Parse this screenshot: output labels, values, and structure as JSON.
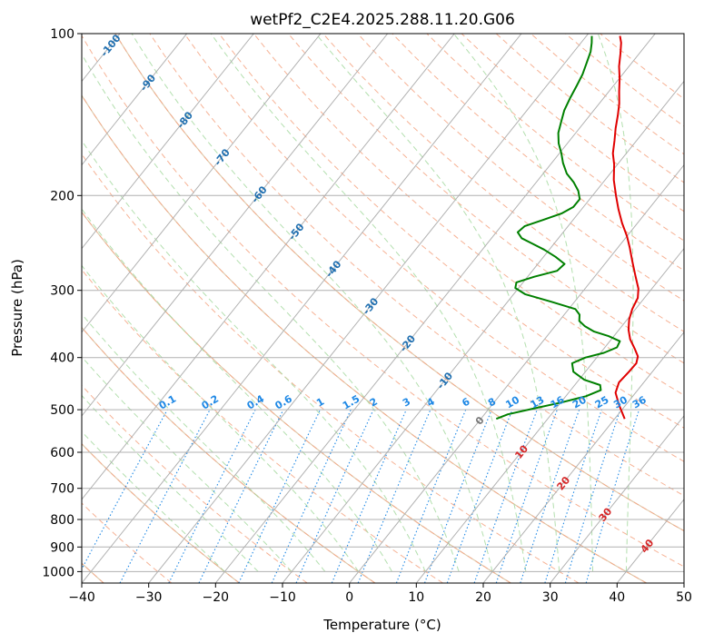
{
  "chart_data": {
    "type": "line",
    "chart_kind": "skew-T log-P",
    "title": "wetPf2_C2E4.2025.288.11.20.G06",
    "xlabel": "Temperature (°C)",
    "ylabel": "Pressure (hPa)",
    "xlim": [
      -40,
      50
    ],
    "ylim": [
      1050,
      100
    ],
    "x_ticks": [
      -40,
      -30,
      -20,
      -10,
      0,
      10,
      20,
      30,
      40,
      50
    ],
    "y_ticks": [
      100,
      200,
      300,
      400,
      500,
      600,
      700,
      800,
      900,
      1000
    ],
    "series": [
      {
        "name": "temperature",
        "color": "#e00000",
        "points": [
          [
            21.5,
            520
          ],
          [
            19,
            490
          ],
          [
            17,
            465
          ],
          [
            16.3,
            445
          ],
          [
            16.5,
            425
          ],
          [
            16.6,
            410
          ],
          [
            16,
            398
          ],
          [
            14.6,
            385
          ],
          [
            12.8,
            370
          ],
          [
            11.4,
            355
          ],
          [
            10.3,
            340
          ],
          [
            9.5,
            325
          ],
          [
            9,
            310
          ],
          [
            8,
            298
          ],
          [
            6,
            282
          ],
          [
            3.8,
            265
          ],
          [
            1.8,
            250
          ],
          [
            0,
            238
          ],
          [
            -2.3,
            225
          ],
          [
            -4.5,
            212
          ],
          [
            -6.5,
            200
          ],
          [
            -8.7,
            187
          ],
          [
            -10.5,
            175
          ],
          [
            -12,
            167
          ],
          [
            -13.3,
            158
          ],
          [
            -14.6,
            150
          ],
          [
            -15.8,
            142
          ],
          [
            -17,
            135
          ],
          [
            -18.5,
            128
          ],
          [
            -20,
            121
          ],
          [
            -21.5,
            115
          ],
          [
            -22.8,
            109
          ],
          [
            -24,
            104
          ],
          [
            -25,
            101
          ]
        ]
      },
      {
        "name": "dewpoint",
        "color": "#008000",
        "points": [
          [
            2.3,
            520
          ],
          [
            3.5,
            510
          ],
          [
            6.5,
            498
          ],
          [
            10,
            485
          ],
          [
            13,
            472
          ],
          [
            14.5,
            460
          ],
          [
            13.8,
            450
          ],
          [
            10.8,
            440
          ],
          [
            8.2,
            425
          ],
          [
            7,
            410
          ],
          [
            8.3,
            400
          ],
          [
            10.5,
            392
          ],
          [
            11.8,
            383
          ],
          [
            11.5,
            373
          ],
          [
            9.2,
            365
          ],
          [
            6.5,
            358
          ],
          [
            4.5,
            350
          ],
          [
            3,
            342
          ],
          [
            2.3,
            333
          ],
          [
            1,
            325
          ],
          [
            -3.5,
            315
          ],
          [
            -8.3,
            305
          ],
          [
            -10.5,
            297
          ],
          [
            -11,
            290
          ],
          [
            -9,
            283
          ],
          [
            -6.3,
            276
          ],
          [
            -6,
            268
          ],
          [
            -8.2,
            260
          ],
          [
            -10.8,
            252
          ],
          [
            -13.5,
            245
          ],
          [
            -15.5,
            240
          ],
          [
            -16.8,
            234
          ],
          [
            -16.5,
            228
          ],
          [
            -14.5,
            222
          ],
          [
            -12.5,
            216
          ],
          [
            -11.5,
            210
          ],
          [
            -11.5,
            203
          ],
          [
            -12.7,
            196
          ],
          [
            -14.4,
            189
          ],
          [
            -16.5,
            182
          ],
          [
            -18.3,
            174
          ],
          [
            -19.7,
            167
          ],
          [
            -21.3,
            160
          ],
          [
            -22.6,
            153
          ],
          [
            -23.5,
            146
          ],
          [
            -24.4,
            139
          ],
          [
            -25,
            132
          ],
          [
            -25.5,
            125
          ],
          [
            -26,
            119
          ],
          [
            -26.8,
            113
          ],
          [
            -27.5,
            108
          ],
          [
            -28.4,
            104
          ],
          [
            -29.2,
            101
          ]
        ]
      }
    ],
    "isotherm_labels": [
      "-100",
      "-90",
      "-80",
      "-70",
      "-60",
      "-50",
      "-40",
      "-30",
      "-20",
      "-10",
      "0",
      "10",
      "20",
      "30",
      "40"
    ],
    "mixing_ratio_labels": [
      "0.1",
      "0.2",
      "0.4",
      "0.6",
      "1",
      "1.5",
      "2",
      "3",
      "4",
      "6",
      "8",
      "10",
      "13",
      "16",
      "20",
      "25",
      "30",
      "36"
    ],
    "colors": {
      "isotherm_label_cold": "#1f6fb0",
      "isotherm_label_zero": "#777777",
      "isotherm_label_warm": "#d62728",
      "mixing_ratio": "#1e88e5",
      "dry_adiabat": "#f4a582",
      "moist_adiabat": "#a6d9a0",
      "skew_grid": "#b0b0b0",
      "background_adiabat": "#dcc7a8"
    }
  }
}
